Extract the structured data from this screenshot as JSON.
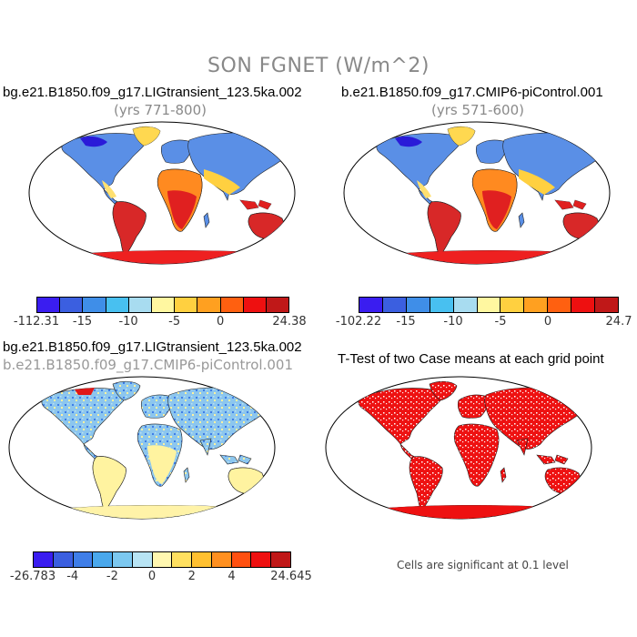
{
  "title": "SON FGNET (W/m^2)",
  "panels": [
    {
      "title": "bg.e21.B1850.f09_g17.LIGtransient_123.5ka.002",
      "subtitle": "(yrs 771-800)",
      "colorbar": {
        "labels": [
          "-112.31",
          "-15",
          "-10",
          "-5",
          "0",
          "24.38"
        ],
        "colors": [
          "#3a1df0",
          "#3b5fe0",
          "#3f8ee8",
          "#48c0f0",
          "#a8dcf0",
          "#fff7a0",
          "#ffd040",
          "#ffa020",
          "#ff6010",
          "#ee1010",
          "#c01818"
        ]
      }
    },
    {
      "title": "b.e21.B1850.f09_g17.CMIP6-piControl.001",
      "subtitle": "(yrs 571-600)",
      "colorbar": {
        "labels": [
          "-102.22",
          "-15",
          "-10",
          "-5",
          "0",
          "24.7"
        ],
        "colors": [
          "#3a1df0",
          "#3b5fe0",
          "#3f8ee8",
          "#48c0f0",
          "#a8dcf0",
          "#fff7a0",
          "#ffd040",
          "#ffa020",
          "#ff6010",
          "#ee1010",
          "#c01818"
        ]
      }
    },
    {
      "title": "bg.e21.B1850.f09_g17.LIGtransient_123.5ka.002",
      "subtitle": "b.e21.B1850.f09_g17.CMIP6-piControl.001",
      "colorbar": {
        "labels": [
          "-26.783",
          "-4",
          "-2",
          "0",
          "2",
          "4",
          "24.645"
        ],
        "colors": [
          "#3a1df0",
          "#3b5fe0",
          "#3f7ee8",
          "#4aa8ec",
          "#7cc8f0",
          "#b8e4f4",
          "#fff7b0",
          "#ffe060",
          "#ffc030",
          "#ff9020",
          "#ff5010",
          "#ee1010",
          "#c01818"
        ]
      }
    },
    {
      "title": "T-Test of two Case means at each grid point",
      "note": "Cells are significant at 0.1 level"
    }
  ]
}
